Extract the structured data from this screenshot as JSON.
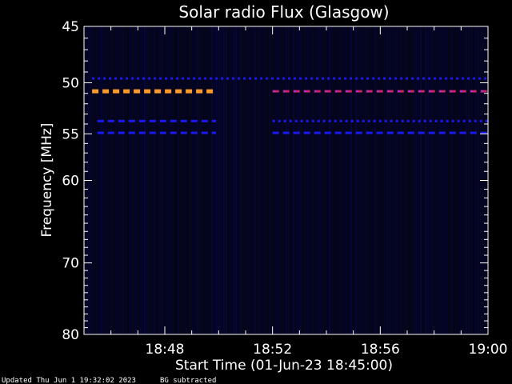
{
  "footer": {
    "updated": "Updated Thu Jun  1 19:32:02 2023",
    "note": "BG subtracted"
  },
  "chart_data": {
    "type": "heatmap",
    "title": "Solar radio Flux (Glasgow)",
    "xlabel": "Start Time (01-Jun-23 18:45:00)",
    "ylabel": "Frequency [MHz]",
    "xlim_min": [
      0,
      15
    ],
    "x_ticks": [
      {
        "min": 3,
        "label": "18:48"
      },
      {
        "min": 7,
        "label": "18:52"
      },
      {
        "min": 11,
        "label": "18:56"
      },
      {
        "min": 15,
        "label": "19:00"
      }
    ],
    "y_ticks": [
      45,
      50,
      55,
      60,
      70,
      80
    ],
    "ylim": [
      45,
      80
    ],
    "y_scale": "log",
    "colors": {
      "background": "#000000",
      "plot_bg": "#05051a",
      "orange": "#ff9a2a",
      "red": "#cc2266",
      "blue": "#1a1aee",
      "purple": "#8a3aff"
    },
    "bands": [
      {
        "freq": 49.6,
        "min_start": 0.3,
        "min_end": 15.0,
        "color": "blue",
        "style": "dotted"
      },
      {
        "freq": 50.8,
        "min_start": 0.3,
        "min_end": 4.9,
        "color": "orange",
        "style": "dashed"
      },
      {
        "freq": 50.8,
        "min_start": 7.0,
        "min_end": 15.0,
        "color": "red",
        "style": "dashed"
      },
      {
        "freq": 53.7,
        "min_start": 0.5,
        "min_end": 4.9,
        "color": "blue",
        "style": "dashed"
      },
      {
        "freq": 53.7,
        "min_start": 7.0,
        "min_end": 15.0,
        "color": "blue",
        "style": "dotted"
      },
      {
        "freq": 54.9,
        "min_start": 0.5,
        "min_end": 4.9,
        "color": "blue",
        "style": "dashed"
      },
      {
        "freq": 54.9,
        "min_start": 7.0,
        "min_end": 15.0,
        "color": "blue",
        "style": "dashed"
      }
    ]
  }
}
